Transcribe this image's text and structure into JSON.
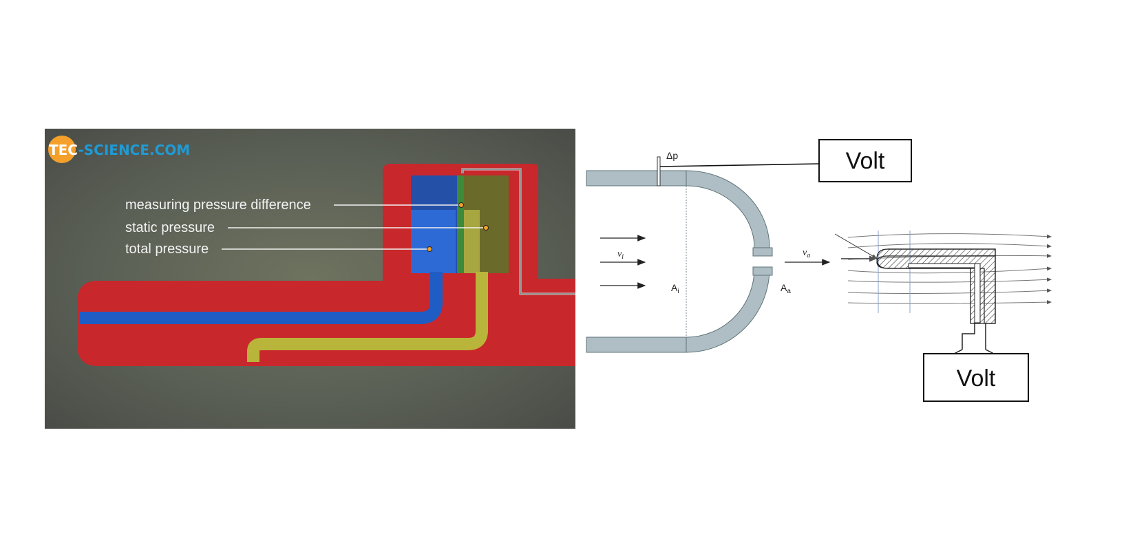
{
  "left_panel": {
    "logo": {
      "part1": "TEC",
      "part2": "-SCIENCE",
      "part3": ".COM"
    },
    "labels": {
      "measuring": "measuring pressure difference",
      "static": "static pressure",
      "total": "total pressure"
    },
    "colors": {
      "body": "#c8282c",
      "blue_tube": "#1f5cc4",
      "yellow_tube": "#b9b43a",
      "background": "#5d6358",
      "logo_orange": "#f5a02a",
      "logo_blue": "#1f9bd6"
    }
  },
  "middle_diagram": {
    "delta_p": "Δp",
    "v_i": "v",
    "v_i_sub": "i",
    "v_a": "v",
    "v_a_sub": "a",
    "a_i": "A",
    "a_i_sub": "i",
    "a_a": "A",
    "a_a_sub": "a",
    "volt": "Volt",
    "colors": {
      "wall": "#aebec4",
      "stroke": "#5f7378"
    }
  },
  "right_diagram": {
    "volt": "Volt"
  }
}
